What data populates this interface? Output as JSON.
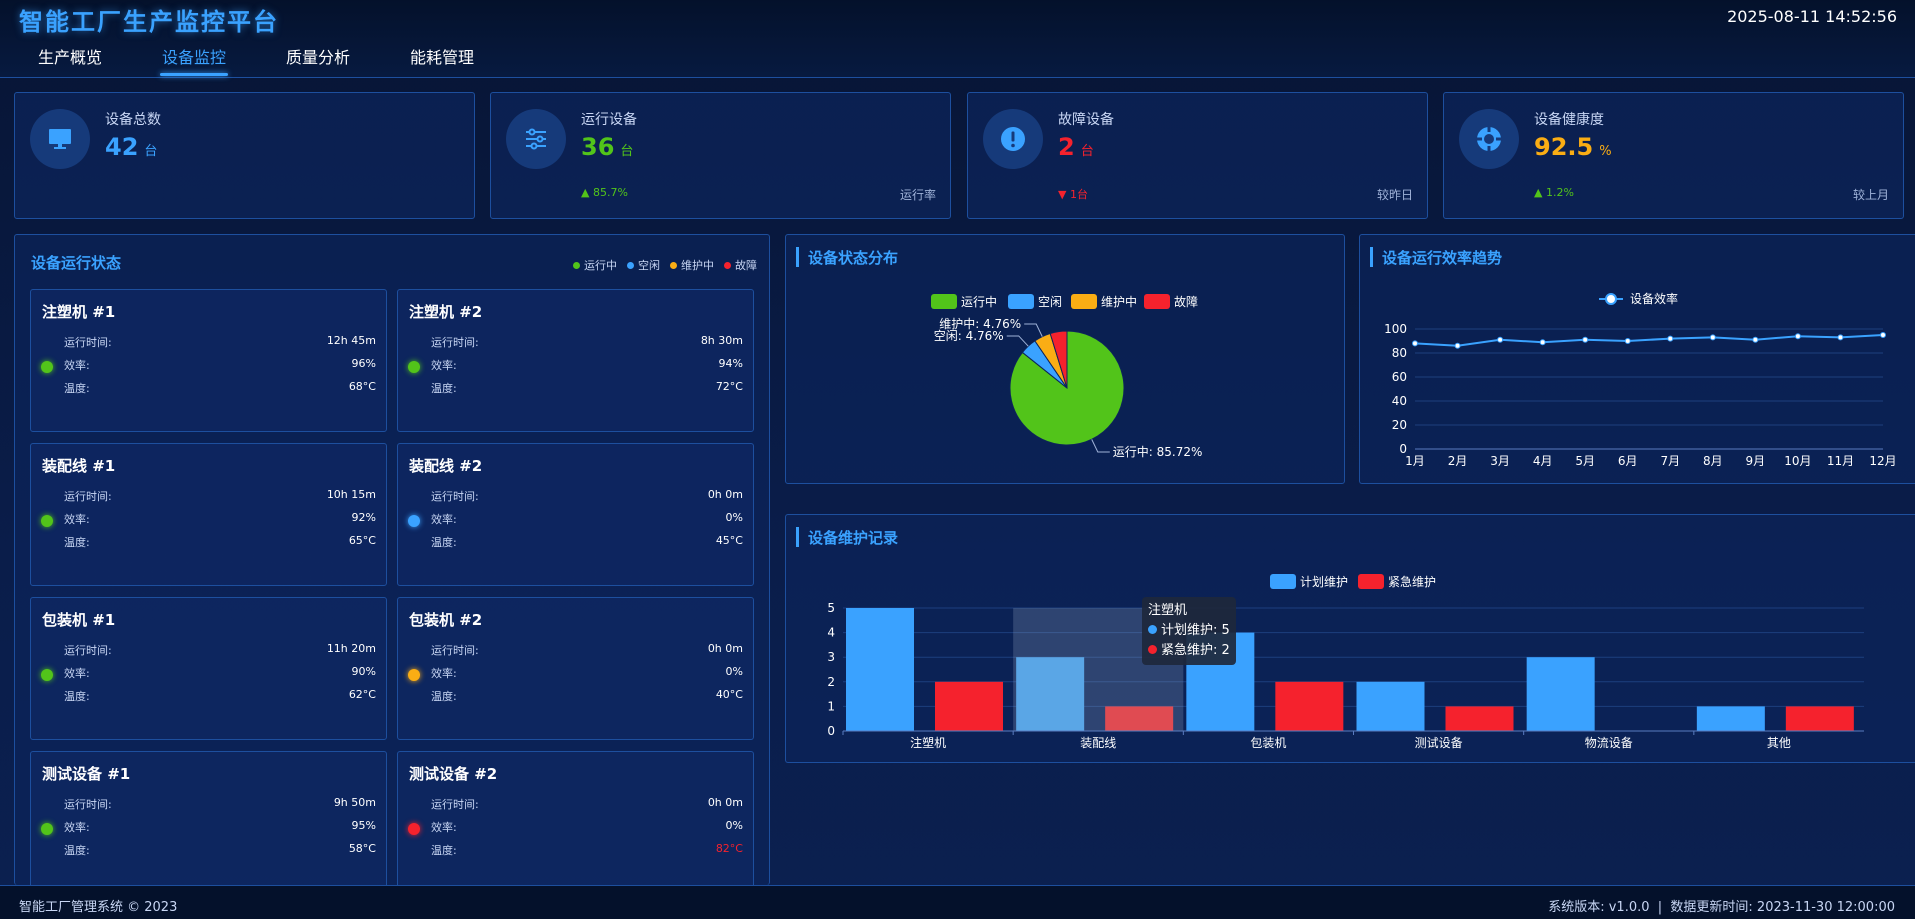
{
  "header": {
    "title": "智能工厂生产监控平台",
    "clock": "2025-08-11 14:52:56",
    "nav": [
      {
        "label": "生产概览"
      },
      {
        "label": "设备监控",
        "active": true
      },
      {
        "label": "质量分析"
      },
      {
        "label": "能耗管理"
      }
    ]
  },
  "stats": [
    {
      "label": "设备总数",
      "value": "42",
      "unit": "台",
      "color": "#3aa2ff",
      "icon": "monitor-icon"
    },
    {
      "label": "运行设备",
      "value": "36",
      "unit": "台",
      "color": "#52c41a",
      "change": "▲ 85.7%",
      "change_color": "#52c41a",
      "note": "运行率",
      "icon": "sliders-icon"
    },
    {
      "label": "故障设备",
      "value": "2",
      "unit": "台",
      "color": "#f5222d",
      "change": "▼ 1台",
      "change_color": "#f5222d",
      "note": "较昨日",
      "icon": "alert-icon"
    },
    {
      "label": "设备健康度",
      "value": "92.5",
      "unit": "%",
      "color": "#faad14",
      "change": "▲ 1.2%",
      "change_color": "#52c41a",
      "note": "较上月",
      "icon": "lifebuoy-icon"
    }
  ],
  "equipment_panel": {
    "title": "设备运行状态",
    "legend": [
      {
        "label": "运行中",
        "color": "#52c41a"
      },
      {
        "label": "空闲",
        "color": "#3aa2ff"
      },
      {
        "label": "维护中",
        "color": "#faad14"
      },
      {
        "label": "故障",
        "color": "#f5222d"
      }
    ],
    "labels": {
      "runtime": "运行时间:",
      "efficiency": "效率:",
      "temperature": "温度:"
    },
    "items": [
      {
        "name": "注塑机 #1",
        "runtime": "12h 45m",
        "efficiency": "96%",
        "temperature": "68°C",
        "status_color": "#52c41a"
      },
      {
        "name": "注塑机 #2",
        "runtime": "8h 30m",
        "efficiency": "94%",
        "temperature": "72°C",
        "status_color": "#52c41a"
      },
      {
        "name": "装配线 #1",
        "runtime": "10h 15m",
        "efficiency": "92%",
        "temperature": "65°C",
        "status_color": "#52c41a"
      },
      {
        "name": "装配线 #2",
        "runtime": "0h 0m",
        "efficiency": "0%",
        "temperature": "45°C",
        "status_color": "#3aa2ff"
      },
      {
        "name": "包装机 #1",
        "runtime": "11h 20m",
        "efficiency": "90%",
        "temperature": "62°C",
        "status_color": "#52c41a"
      },
      {
        "name": "包装机 #2",
        "runtime": "0h 0m",
        "efficiency": "0%",
        "temperature": "40°C",
        "status_color": "#faad14"
      },
      {
        "name": "测试设备 #1",
        "runtime": "9h 50m",
        "efficiency": "95%",
        "temperature": "58°C",
        "status_color": "#52c41a"
      },
      {
        "name": "测试设备 #2",
        "runtime": "0h 0m",
        "efficiency": "0%",
        "temperature": "82°C",
        "status_color": "#f5222d",
        "temp_alert": true
      }
    ]
  },
  "pie_panel": {
    "title": "设备状态分布"
  },
  "trend_panel": {
    "title": "设备运行效率趋势"
  },
  "maintenance_panel": {
    "title": "设备维护记录",
    "tooltip": {
      "title": "注塑机",
      "rows": [
        "计划维护: 5",
        "紧急维护: 2"
      ]
    }
  },
  "chart_data": [
    {
      "type": "pie",
      "legend": [
        "运行中",
        "空闲",
        "维护中",
        "故障"
      ],
      "slices": [
        {
          "label": "运行中",
          "value": 85.72,
          "display": "运行中: 85.72%",
          "color": "#52c41a"
        },
        {
          "label": "空闲",
          "value": 4.76,
          "display": "空闲: 4.76%",
          "color": "#3aa2ff"
        },
        {
          "label": "维护中",
          "value": 4.76,
          "display": "维护中: 4.76%",
          "color": "#faad14"
        },
        {
          "label": "故障",
          "value": 4.76,
          "display": "",
          "color": "#f5222d"
        }
      ]
    },
    {
      "type": "line",
      "series_name": "设备效率",
      "categories": [
        "1月",
        "2月",
        "3月",
        "4月",
        "5月",
        "6月",
        "7月",
        "8月",
        "9月",
        "10月",
        "11月",
        "12月"
      ],
      "values": [
        88,
        86,
        91,
        89,
        91,
        90,
        92,
        93,
        91,
        94,
        93,
        95
      ],
      "yticks": [
        0,
        20,
        40,
        60,
        80,
        100
      ],
      "ylim": [
        0,
        100
      ],
      "color": "#3aa2ff"
    },
    {
      "type": "bar",
      "categories": [
        "注塑机",
        "装配线",
        "包装机",
        "测试设备",
        "物流设备",
        "其他"
      ],
      "series": [
        {
          "name": "计划维护",
          "values": [
            5,
            3,
            4,
            2,
            3,
            1
          ],
          "color": "#3aa2ff"
        },
        {
          "name": "紧急维护",
          "values": [
            2,
            1,
            2,
            1,
            0,
            1
          ],
          "color": "#f5222d"
        }
      ],
      "yticks": [
        0,
        1,
        2,
        3,
        4,
        5
      ],
      "ylim": [
        0,
        5
      ],
      "highlight_category": "装配线"
    }
  ],
  "footer": {
    "left": "智能工厂管理系统 © 2023",
    "right": "系统版本: v1.0.0  |  数据更新时间: 2023-11-30 12:00:00"
  }
}
